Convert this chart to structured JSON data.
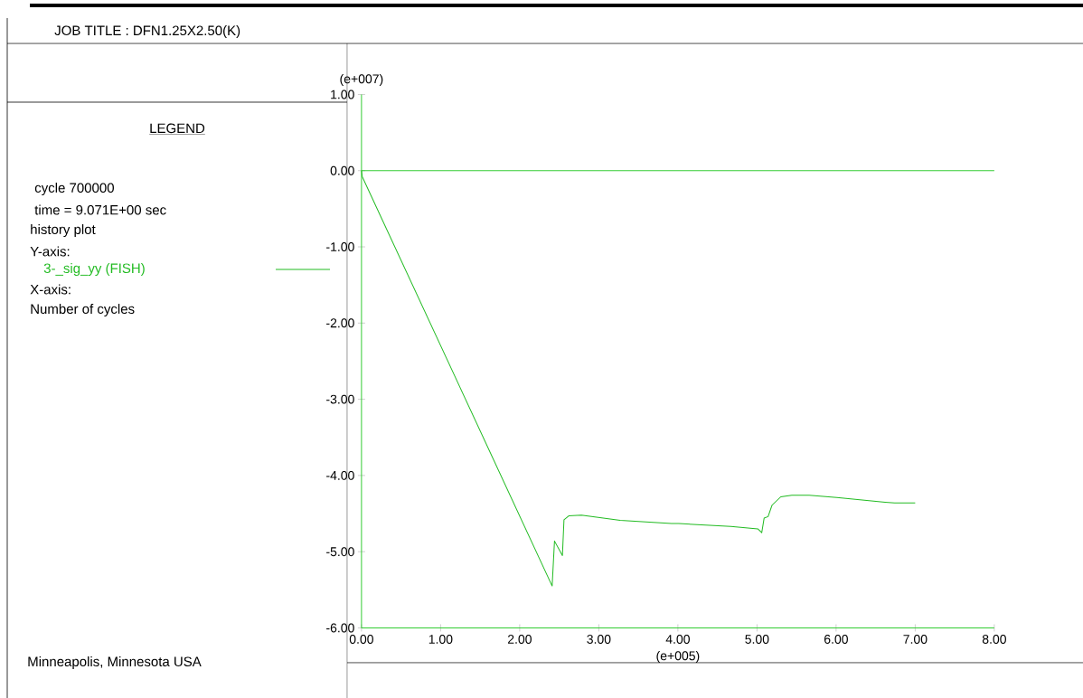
{
  "chart_data": {
    "type": "line",
    "title": "JOB TITLE : DFN1.25X2.50(K)",
    "legend_title": "LEGEND",
    "xlabel": "(e+005)",
    "ylabel": "(e+007)",
    "annotations": [
      "cycle   700000",
      "time = 9.071E+00 sec",
      "history plot",
      "Y-axis:",
      "X-axis:",
      "Number of cycles",
      "Minneapolis, Minnesota  USA"
    ],
    "xlim": [
      0,
      8
    ],
    "ylim": [
      -6,
      1
    ],
    "xticks": [
      {
        "value": 0,
        "label": "0.00"
      },
      {
        "value": 1,
        "label": "1.00"
      },
      {
        "value": 2,
        "label": "2.00"
      },
      {
        "value": 3,
        "label": "3.00"
      },
      {
        "value": 4,
        "label": "4.00"
      },
      {
        "value": 5,
        "label": "5.00"
      },
      {
        "value": 6,
        "label": "6.00"
      },
      {
        "value": 7,
        "label": "7.00"
      },
      {
        "value": 8,
        "label": "8.00"
      }
    ],
    "yticks": [
      {
        "value": 1,
        "label": "1.00"
      },
      {
        "value": 0,
        "label": "0.00"
      },
      {
        "value": -1,
        "label": "-1.00"
      },
      {
        "value": -2,
        "label": "-2.00"
      },
      {
        "value": -3,
        "label": "-3.00"
      },
      {
        "value": -4,
        "label": "-4.00"
      },
      {
        "value": -5,
        "label": "-5.00"
      },
      {
        "value": -6,
        "label": "-6.00"
      }
    ],
    "ref_lines": [
      {
        "axis": "y",
        "value": 0,
        "color": "#33cc33"
      }
    ],
    "legend": "left",
    "grid": false,
    "marker": "none",
    "line_style": "solid",
    "series": [
      {
        "name": "3-_sig_yy (FISH)",
        "color": "#22bb22",
        "x": [
          0,
          0.01,
          2.41,
          2.44,
          2.54,
          2.56,
          2.62,
          2.78,
          3.27,
          3.92,
          4.01,
          4.67,
          5.01,
          5.06,
          5.09,
          5.14,
          5.19,
          5.3,
          5.44,
          5.66,
          6.01,
          6.62,
          6.74,
          7.0
        ],
        "values": [
          0,
          -0.08,
          -5.45,
          -4.86,
          -5.05,
          -4.58,
          -4.53,
          -4.52,
          -4.59,
          -4.63,
          -4.63,
          -4.67,
          -4.7,
          -4.75,
          -4.56,
          -4.54,
          -4.39,
          -4.28,
          -4.26,
          -4.26,
          -4.29,
          -4.35,
          -4.36,
          -4.36
        ]
      }
    ]
  }
}
